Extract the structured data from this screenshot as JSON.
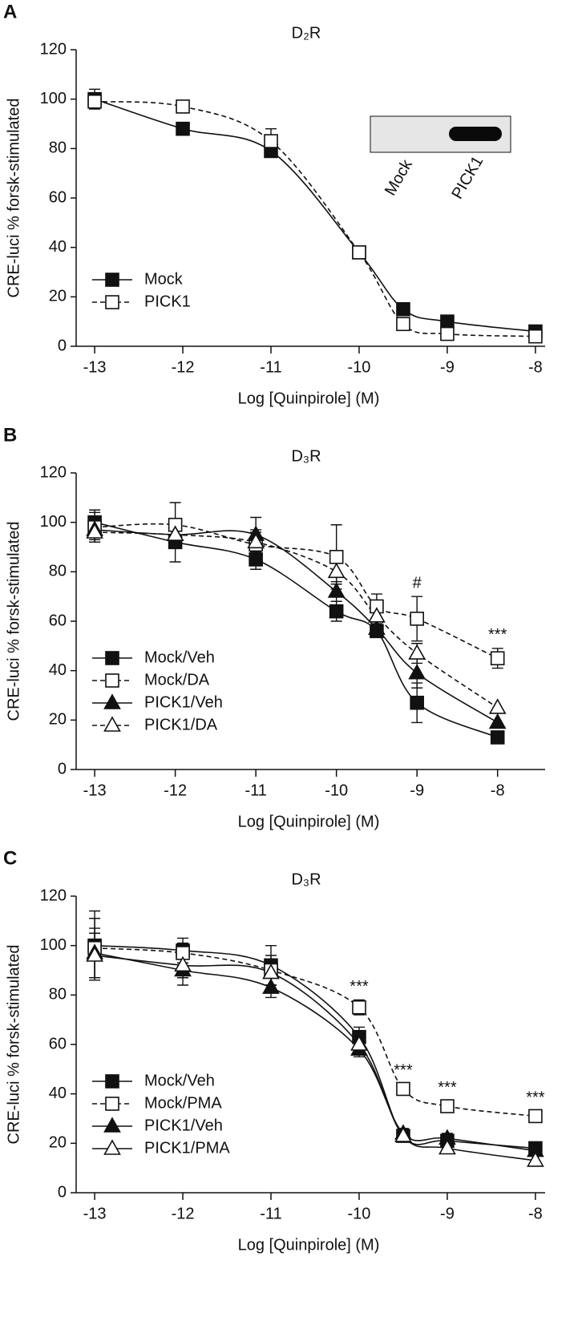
{
  "chart_data": [
    {
      "type": "scatter",
      "panel": "A",
      "title": "D₂R",
      "xlabel": "Log [Quinpirole] (M)",
      "ylabel": "CRE-luci % forsk-stimulated",
      "x": [
        -13,
        -12,
        -11,
        -10,
        -9.5,
        -9,
        -8
      ],
      "xlim": [
        -13.21,
        -7.89
      ],
      "xticks": [
        -13,
        -12,
        -11,
        -10,
        -9,
        -8
      ],
      "ylim": [
        0,
        120
      ],
      "yticks": [
        0,
        20,
        40,
        60,
        80,
        100,
        120
      ],
      "legend": "lower left",
      "series": [
        {
          "name": "Mock",
          "color": "#111111",
          "marker": "square",
          "filled": true,
          "dashed": false,
          "values": [
            100,
            88,
            79,
            38,
            15,
            10,
            6
          ],
          "errors": [
            4,
            null,
            null,
            null,
            null,
            null,
            null
          ]
        },
        {
          "name": "PICK1",
          "color": "#111111",
          "marker": "square",
          "filled": false,
          "dashed": true,
          "values": [
            99,
            97,
            83,
            38,
            9,
            5,
            4
          ],
          "errors": [
            null,
            null,
            5,
            null,
            null,
            null,
            null
          ]
        }
      ],
      "annotations": [],
      "inset_labels": [
        "Mock",
        "PICK1"
      ]
    },
    {
      "type": "scatter",
      "panel": "B",
      "title": "D₃R",
      "xlabel": "Log [Quinpirole] (M)",
      "ylabel": "CRE-luci % forsk-stimulated",
      "x": [
        -13,
        -12,
        -11,
        -10,
        -9.5,
        -9,
        -8
      ],
      "xlim": [
        -13.23,
        -7.41
      ],
      "xticks": [
        -13,
        -12,
        -11,
        -10,
        -9,
        -8
      ],
      "ylim": [
        0,
        120
      ],
      "yticks": [
        0,
        20,
        40,
        60,
        80,
        100,
        120
      ],
      "legend": "lower left",
      "series": [
        {
          "name": "Mock/Veh",
          "color": "#111111",
          "marker": "square",
          "filled": true,
          "dashed": false,
          "values": [
            100,
            92,
            85,
            64,
            56,
            27,
            13
          ],
          "errors": [
            5,
            8,
            4,
            4,
            2,
            8,
            null
          ]
        },
        {
          "name": "Mock/DA",
          "color": "#111111",
          "marker": "square",
          "filled": false,
          "dashed": true,
          "values": [
            98,
            99,
            91,
            86,
            66,
            61,
            45
          ],
          "errors": [
            6,
            9,
            5,
            13,
            5,
            9,
            4
          ]
        },
        {
          "name": "PICK1/Veh",
          "color": "#111111",
          "marker": "triangle",
          "filled": true,
          "dashed": false,
          "values": [
            97,
            95,
            95,
            72,
            57,
            39,
            19
          ],
          "errors": [
            4,
            4,
            7,
            4,
            3,
            6,
            null
          ]
        },
        {
          "name": "PICK1/DA",
          "color": "#111111",
          "marker": "triangle",
          "filled": false,
          "dashed": true,
          "values": [
            96,
            95,
            92,
            80,
            62,
            47,
            25
          ],
          "errors": [
            4,
            4,
            5,
            5,
            3,
            4,
            null
          ]
        }
      ],
      "annotations": [
        {
          "text": "#",
          "x": -9
        },
        {
          "text": "***",
          "x": -8
        }
      ]
    },
    {
      "type": "scatter",
      "panel": "C",
      "title": "D₃R",
      "xlabel": "Log [Quinpirole] (M)",
      "ylabel": "CRE-luci % forsk-stimulated",
      "x": [
        -13,
        -12,
        -11,
        -10,
        -9.5,
        -9,
        -8
      ],
      "xlim": [
        -13.21,
        -7.89
      ],
      "xticks": [
        -13,
        -12,
        -11,
        -10,
        -9,
        -8
      ],
      "ylim": [
        0,
        120
      ],
      "yticks": [
        0,
        20,
        40,
        60,
        80,
        100,
        120
      ],
      "legend": "lower left",
      "series": [
        {
          "name": "Mock/Veh",
          "color": "#111111",
          "marker": "square",
          "filled": true,
          "dashed": false,
          "values": [
            100,
            98,
            92,
            63,
            23,
            21,
            18
          ],
          "errors": [
            14,
            5,
            8,
            4,
            2,
            2,
            2
          ]
        },
        {
          "name": "Mock/PMA",
          "color": "#111111",
          "marker": "square",
          "filled": false,
          "dashed": true,
          "values": [
            99,
            97,
            90,
            75,
            42,
            35,
            31
          ],
          "errors": [
            12,
            4,
            6,
            3,
            2,
            2,
            2
          ]
        },
        {
          "name": "PICK1/Veh",
          "color": "#111111",
          "marker": "triangle",
          "filled": true,
          "dashed": false,
          "values": [
            97,
            90,
            83,
            58,
            24,
            22,
            17
          ],
          "errors": [
            10,
            6,
            4,
            3,
            2,
            2,
            2
          ]
        },
        {
          "name": "PICK1/PMA",
          "color": "#111111",
          "marker": "triangle",
          "filled": false,
          "dashed": false,
          "values": [
            96,
            92,
            89,
            60,
            23,
            18,
            13
          ],
          "errors": [
            9,
            5,
            5,
            3,
            2,
            2,
            2
          ]
        }
      ],
      "annotations": [
        {
          "text": "***",
          "x": -10
        },
        {
          "text": "***",
          "x": -9.5
        },
        {
          "text": "***",
          "x": -9
        },
        {
          "text": "***",
          "x": -8
        }
      ]
    }
  ]
}
